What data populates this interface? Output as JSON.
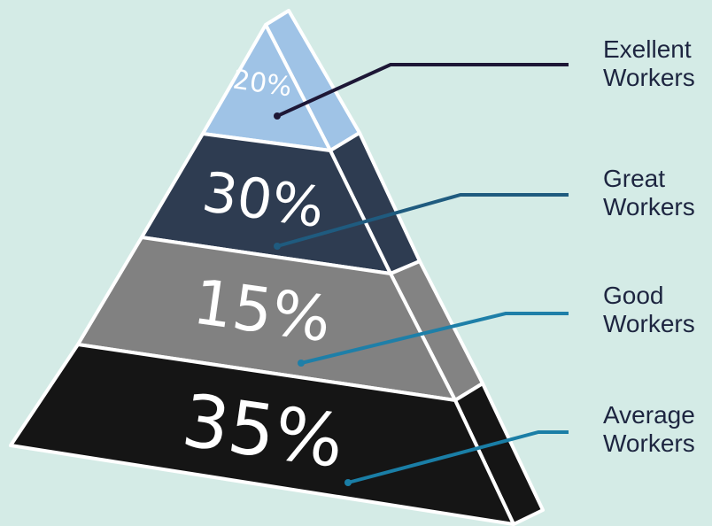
{
  "levels": [
    {
      "percent": "20%",
      "label_line1": "Exellent",
      "label_line2": "Workers",
      "front_color": "#9fc3e6",
      "side_color": "#9fc3e6",
      "line_color": "#1d1736"
    },
    {
      "percent": "30%",
      "label_line1": "Great",
      "label_line2": "Workers",
      "front_color": "#2e3c51",
      "side_color": "#2e3c51",
      "line_color": "#1f5b7f"
    },
    {
      "percent": "15%",
      "label_line1": "Good",
      "label_line2": "Workers",
      "front_color": "#818181",
      "side_color": "#838383",
      "line_color": "#1e7fa8"
    },
    {
      "percent": "35%",
      "label_line1": "Average",
      "label_line2": "Workers",
      "front_color": "#151515",
      "side_color": "#151515",
      "line_color": "#1a7ea6"
    }
  ],
  "colors": {
    "background": "#d4ebe6",
    "outline": "#ffffff",
    "label_text": "#1d2540"
  }
}
